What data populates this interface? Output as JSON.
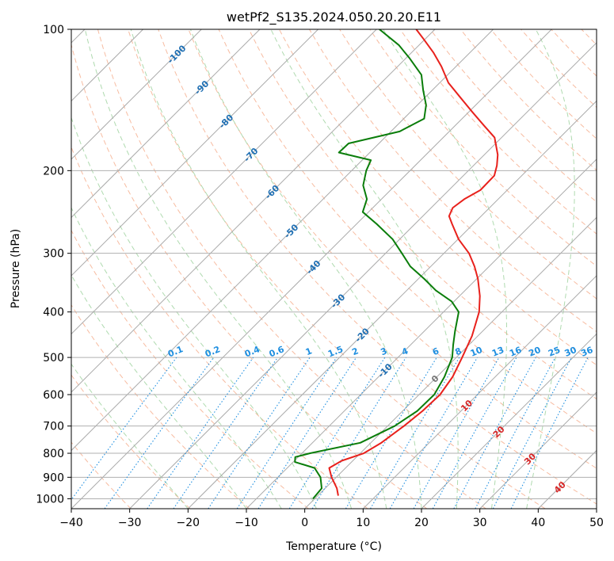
{
  "chart_data": {
    "type": "skew-t",
    "title": "wetPf2_S135.2024.050.20.20.E11",
    "xlabel": "Temperature (°C)",
    "ylabel": "Pressure (hPa)",
    "xlim": [
      -40,
      50
    ],
    "ylim_hPa": [
      1050,
      100
    ],
    "log_pressure_axis": true,
    "grid": true,
    "x_ticks": [
      -40,
      -30,
      -20,
      -10,
      0,
      10,
      20,
      30,
      40,
      50
    ],
    "x_tick_labels": [
      "−40",
      "−30",
      "−20",
      "−10",
      "0",
      "10",
      "20",
      "30",
      "40",
      "50"
    ],
    "y_ticks": [
      1000,
      900,
      800,
      700,
      600,
      500,
      400,
      300,
      200,
      100
    ],
    "y_tick_labels": [
      "1000",
      "900",
      "800",
      "700",
      "600",
      "500",
      "400",
      "300",
      "200",
      "100"
    ],
    "series": [
      {
        "role": "temperature",
        "color": "#e8211c",
        "points": [
          {
            "p": 985,
            "t": 3.5
          },
          {
            "p": 950,
            "t": 2.0
          },
          {
            "p": 900,
            "t": -0.8
          },
          {
            "p": 860,
            "t": -2.8
          },
          {
            "p": 830,
            "t": -1.9
          },
          {
            "p": 800,
            "t": 0.6
          },
          {
            "p": 760,
            "t": 1.8
          },
          {
            "p": 700,
            "t": 2.8
          },
          {
            "p": 650,
            "t": 3.4
          },
          {
            "p": 600,
            "t": 3.6
          },
          {
            "p": 550,
            "t": 2.7
          },
          {
            "p": 500,
            "t": 1.0
          },
          {
            "p": 450,
            "t": -1.0
          },
          {
            "p": 400,
            "t": -3.9
          },
          {
            "p": 370,
            "t": -6.5
          },
          {
            "p": 340,
            "t": -9.8
          },
          {
            "p": 320,
            "t": -12.5
          },
          {
            "p": 300,
            "t": -15.7
          },
          {
            "p": 280,
            "t": -19.9
          },
          {
            "p": 260,
            "t": -23.6
          },
          {
            "p": 250,
            "t": -25.5
          },
          {
            "p": 240,
            "t": -26.3
          },
          {
            "p": 230,
            "t": -25.8
          },
          {
            "p": 220,
            "t": -24.6
          },
          {
            "p": 205,
            "t": -24.7
          },
          {
            "p": 195,
            "t": -26.0
          },
          {
            "p": 185,
            "t": -27.7
          },
          {
            "p": 170,
            "t": -31.2
          },
          {
            "p": 160,
            "t": -35.2
          },
          {
            "p": 150,
            "t": -39.4
          },
          {
            "p": 140,
            "t": -43.8
          },
          {
            "p": 130,
            "t": -48.5
          },
          {
            "p": 120,
            "t": -52.5
          },
          {
            "p": 112,
            "t": -56.3
          },
          {
            "p": 105,
            "t": -60.2
          },
          {
            "p": 100,
            "t": -63.2
          }
        ]
      },
      {
        "role": "dewpoint",
        "color": "#0a7d0a",
        "points": [
          {
            "p": 1000,
            "t": -0.3
          },
          {
            "p": 950,
            "t": -0.6
          },
          {
            "p": 900,
            "t": -2.7
          },
          {
            "p": 860,
            "t": -5.3
          },
          {
            "p": 835,
            "t": -9.7
          },
          {
            "p": 815,
            "t": -10.5
          },
          {
            "p": 800,
            "t": -8.6
          },
          {
            "p": 760,
            "t": -1.8
          },
          {
            "p": 700,
            "t": 1.2
          },
          {
            "p": 650,
            "t": 2.5
          },
          {
            "p": 600,
            "t": 2.6
          },
          {
            "p": 550,
            "t": 1.3
          },
          {
            "p": 500,
            "t": -0.7
          },
          {
            "p": 470,
            "t": -2.7
          },
          {
            "p": 440,
            "t": -4.7
          },
          {
            "p": 400,
            "t": -7.4
          },
          {
            "p": 380,
            "t": -10.4
          },
          {
            "p": 360,
            "t": -15.0
          },
          {
            "p": 340,
            "t": -19.0
          },
          {
            "p": 320,
            "t": -23.5
          },
          {
            "p": 300,
            "t": -27.2
          },
          {
            "p": 280,
            "t": -31.2
          },
          {
            "p": 260,
            "t": -36.5
          },
          {
            "p": 245,
            "t": -41.0
          },
          {
            "p": 230,
            "t": -42.5
          },
          {
            "p": 215,
            "t": -45.5
          },
          {
            "p": 200,
            "t": -47.5
          },
          {
            "p": 190,
            "t": -48.5
          },
          {
            "p": 183,
            "t": -55.3
          },
          {
            "p": 175,
            "t": -55.2
          },
          {
            "p": 165,
            "t": -48.5
          },
          {
            "p": 155,
            "t": -46.5
          },
          {
            "p": 145,
            "t": -48.5
          },
          {
            "p": 135,
            "t": -51.5
          },
          {
            "p": 125,
            "t": -54.5
          },
          {
            "p": 115,
            "t": -59.5
          },
          {
            "p": 108,
            "t": -63.5
          },
          {
            "p": 100,
            "t": -69.5
          }
        ]
      }
    ],
    "isotherm_labels": [
      "-100",
      "-90",
      "-80",
      "-70",
      "-60",
      "-50",
      "-40",
      "-30",
      "-20",
      "-10",
      "0",
      "10",
      "20",
      "30",
      "40"
    ],
    "mixing_ratio_labels": [
      "0.1",
      "0.2",
      "0.4",
      "0.6",
      "1",
      "1.5",
      "2",
      "3",
      "4",
      "6",
      "8",
      "10",
      "13",
      "16",
      "20",
      "25",
      "30",
      "36"
    ],
    "colors": {
      "temperature": "#e8211c",
      "dewpoint": "#0a7d0a",
      "isotherm": "#aaaaaa",
      "dry_adiabat": "#f4a582",
      "moist_adiabat": "#9bd19b",
      "mixing_ratio": "#1f8fe0",
      "isotherm_label_cold": "#1f6fb3",
      "isotherm_label_zero": "#777777",
      "isotherm_label_warm": "#d62728",
      "mixing_label": "#1f8fe0"
    }
  }
}
